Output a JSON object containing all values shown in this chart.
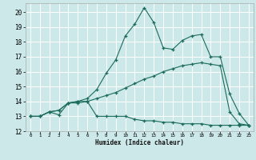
{
  "xlabel": "Humidex (Indice chaleur)",
  "bg_color": "#cce8e8",
  "grid_color": "#ffffff",
  "line_color": "#1a6b5a",
  "xlim": [
    -0.5,
    23.5
  ],
  "ylim": [
    12,
    20.6
  ],
  "yticks": [
    12,
    13,
    14,
    15,
    16,
    17,
    18,
    19,
    20
  ],
  "xticks": [
    0,
    1,
    2,
    3,
    4,
    5,
    6,
    7,
    8,
    9,
    10,
    11,
    12,
    13,
    14,
    15,
    16,
    17,
    18,
    19,
    20,
    21,
    22,
    23
  ],
  "series1_x": [
    0,
    1,
    2,
    3,
    4,
    5,
    6,
    7,
    8,
    9,
    10,
    11,
    12,
    13,
    14,
    15,
    16,
    17,
    18,
    19,
    20,
    21,
    22,
    23
  ],
  "series1_y": [
    13.0,
    13.0,
    13.3,
    13.1,
    13.9,
    13.9,
    14.0,
    13.0,
    13.0,
    13.0,
    13.0,
    12.8,
    12.7,
    12.7,
    12.6,
    12.6,
    12.5,
    12.5,
    12.5,
    12.4,
    12.4,
    12.4,
    12.4,
    12.4
  ],
  "series2_x": [
    0,
    1,
    2,
    3,
    4,
    5,
    6,
    7,
    8,
    9,
    10,
    11,
    12,
    13,
    14,
    15,
    16,
    17,
    18,
    19,
    20,
    21,
    22,
    23
  ],
  "series2_y": [
    13.0,
    13.0,
    13.3,
    13.4,
    13.9,
    14.0,
    14.0,
    14.2,
    14.4,
    14.6,
    14.9,
    15.2,
    15.5,
    15.7,
    16.0,
    16.2,
    16.4,
    16.5,
    16.6,
    16.5,
    16.4,
    13.3,
    12.5,
    12.4
  ],
  "series3_x": [
    0,
    1,
    2,
    3,
    4,
    5,
    6,
    7,
    8,
    9,
    10,
    11,
    12,
    13,
    14,
    15,
    16,
    17,
    18,
    19,
    20,
    21,
    22,
    23
  ],
  "series3_y": [
    13.0,
    13.0,
    13.3,
    13.4,
    13.9,
    14.0,
    14.2,
    14.8,
    15.9,
    16.8,
    18.4,
    19.2,
    20.3,
    19.3,
    17.6,
    17.5,
    18.1,
    18.4,
    18.5,
    17.0,
    17.0,
    14.5,
    13.2,
    12.4
  ]
}
